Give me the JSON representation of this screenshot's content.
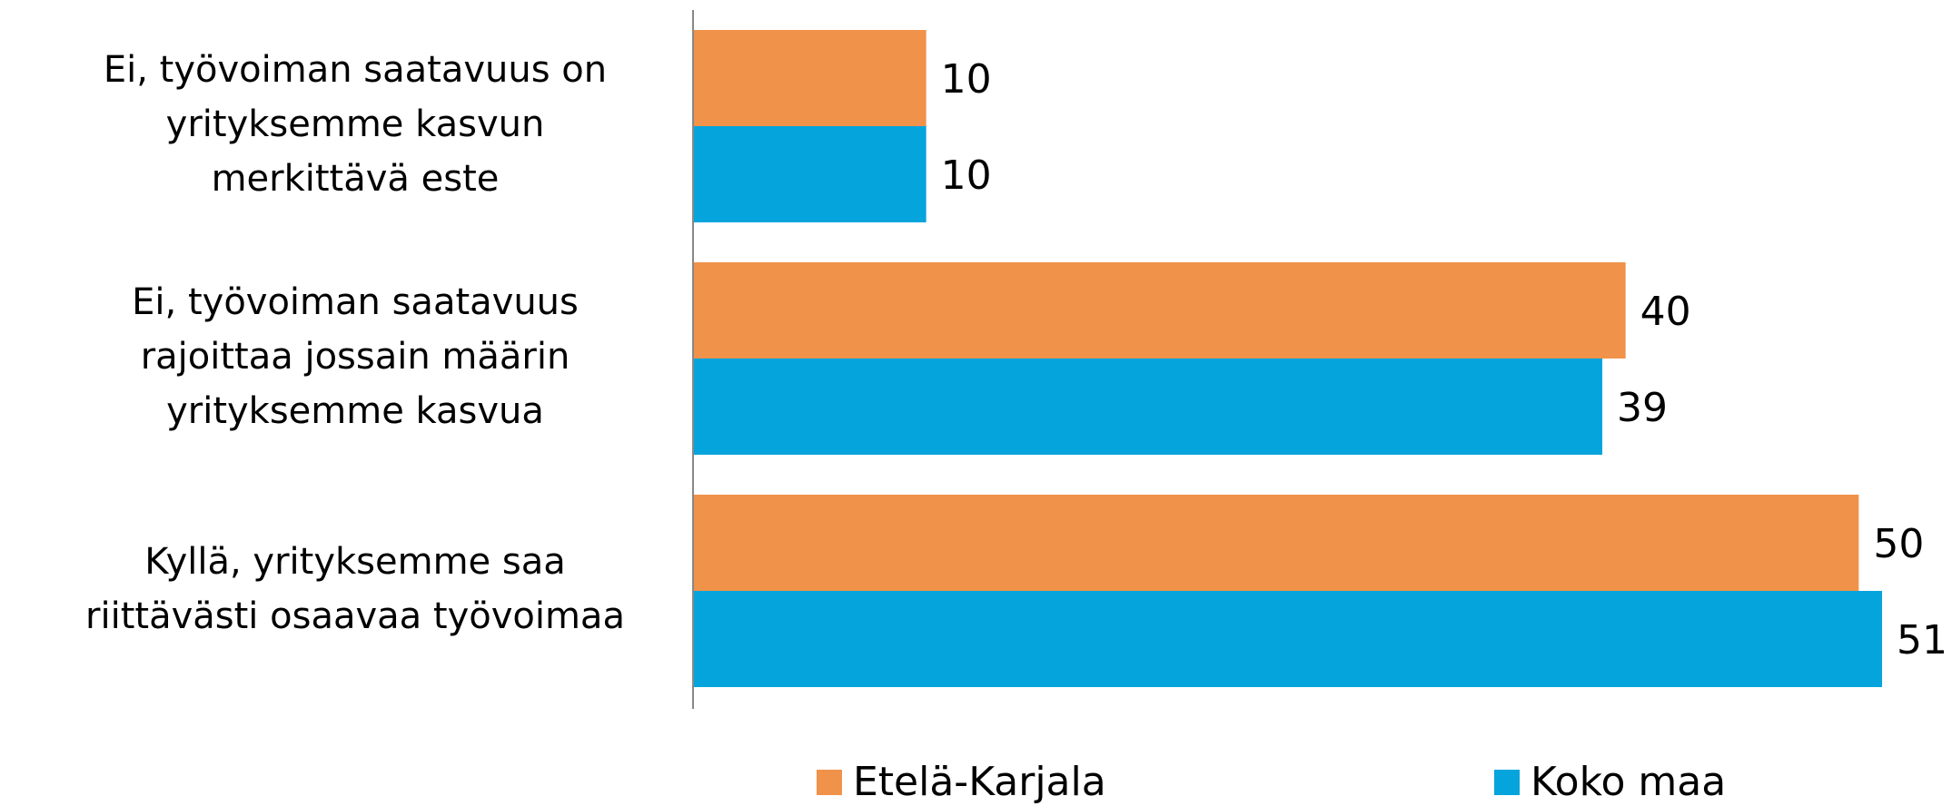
{
  "chart_data": {
    "type": "bar",
    "orientation": "horizontal",
    "categories": [
      [
        "Ei, työvoiman saatavuus on",
        "yrityksemme kasvun",
        "merkittävä este"
      ],
      [
        "Ei, työvoiman saatavuus",
        "rajoittaa jossain määrin",
        "yrityksemme kasvua"
      ],
      [
        "Kyllä, yrityksemme saa",
        "riittävästi osaavaa työvoimaa"
      ]
    ],
    "series": [
      {
        "name": "Etelä-Karjala",
        "color": "#f0924a",
        "values": [
          10,
          40,
          50
        ]
      },
      {
        "name": "Koko maa",
        "color": "#05a4dc",
        "values": [
          10,
          39,
          51
        ]
      }
    ],
    "xlim": [
      0,
      54
    ],
    "legend": "bottom"
  }
}
